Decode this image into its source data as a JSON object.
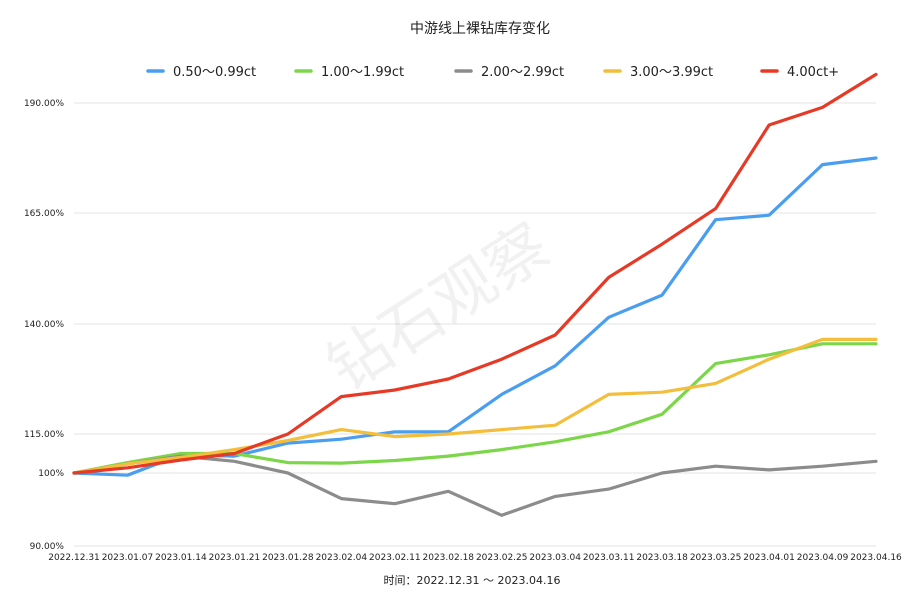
{
  "chart_data": {
    "type": "line",
    "title": "中游线上裸钻库存变化",
    "xlabel": "时间：2022.12.31 ～ 2023.04.16",
    "ylabel": "",
    "watermark": "钻石观察",
    "y_ticks": [
      90,
      100,
      115,
      140,
      165,
      190
    ],
    "y_tick_labels": [
      "90.00%",
      "100%",
      "115.00%",
      "140.00%",
      "165.00%",
      "190.00%"
    ],
    "ylim": [
      90,
      190
    ],
    "grid": true,
    "legend_position": "top",
    "categories": [
      "2022.12.31",
      "2023.01.07",
      "2023.01.14",
      "2023.01.21",
      "2023.01.28",
      "2023.02.04",
      "2023.02.11",
      "2023.02.18",
      "2023.02.25",
      "2023.03.04",
      "2023.03.11",
      "2023.03.18",
      "2023.03.25",
      "2023.04.01",
      "2023.04.09",
      "2023.04.16"
    ],
    "series": [
      {
        "name": "0.50～0.99ct",
        "color": "#4a9ef0",
        "values": [
          100,
          99.7,
          107,
          106.5,
          111.5,
          113,
          115.5,
          115.5,
          124,
          130.5,
          141.5,
          146.5,
          163.5,
          164.5,
          176,
          177.5
        ]
      },
      {
        "name": "1.00～1.99ct",
        "color": "#7cd64a",
        "values": [
          100,
          104,
          107.5,
          107.5,
          104,
          103.8,
          104.8,
          106.5,
          109,
          112,
          115.5,
          119.5,
          131,
          133,
          135.5,
          135.5
        ]
      },
      {
        "name": "2.00～2.99ct",
        "color": "#8c8c8c",
        "values": [
          100,
          103.5,
          106.5,
          104.5,
          100,
          96.5,
          95.8,
          97.5,
          94.2,
          96.8,
          97.8,
          100,
          102.6,
          101.2,
          102.6,
          104.5
        ]
      },
      {
        "name": "3.00～3.99ct",
        "color": "#f2be3c",
        "values": [
          100,
          103.5,
          106,
          109,
          112.5,
          116,
          114,
          115,
          116,
          117,
          124,
          124.5,
          126.5,
          132,
          136.5,
          136.5
        ]
      },
      {
        "name": "4.00ct+",
        "color": "#e63a26",
        "values": [
          100,
          102,
          105,
          107.5,
          115,
          123.5,
          125,
          127.5,
          132,
          137.5,
          150.5,
          158,
          166,
          185,
          189,
          196.5
        ]
      }
    ]
  }
}
